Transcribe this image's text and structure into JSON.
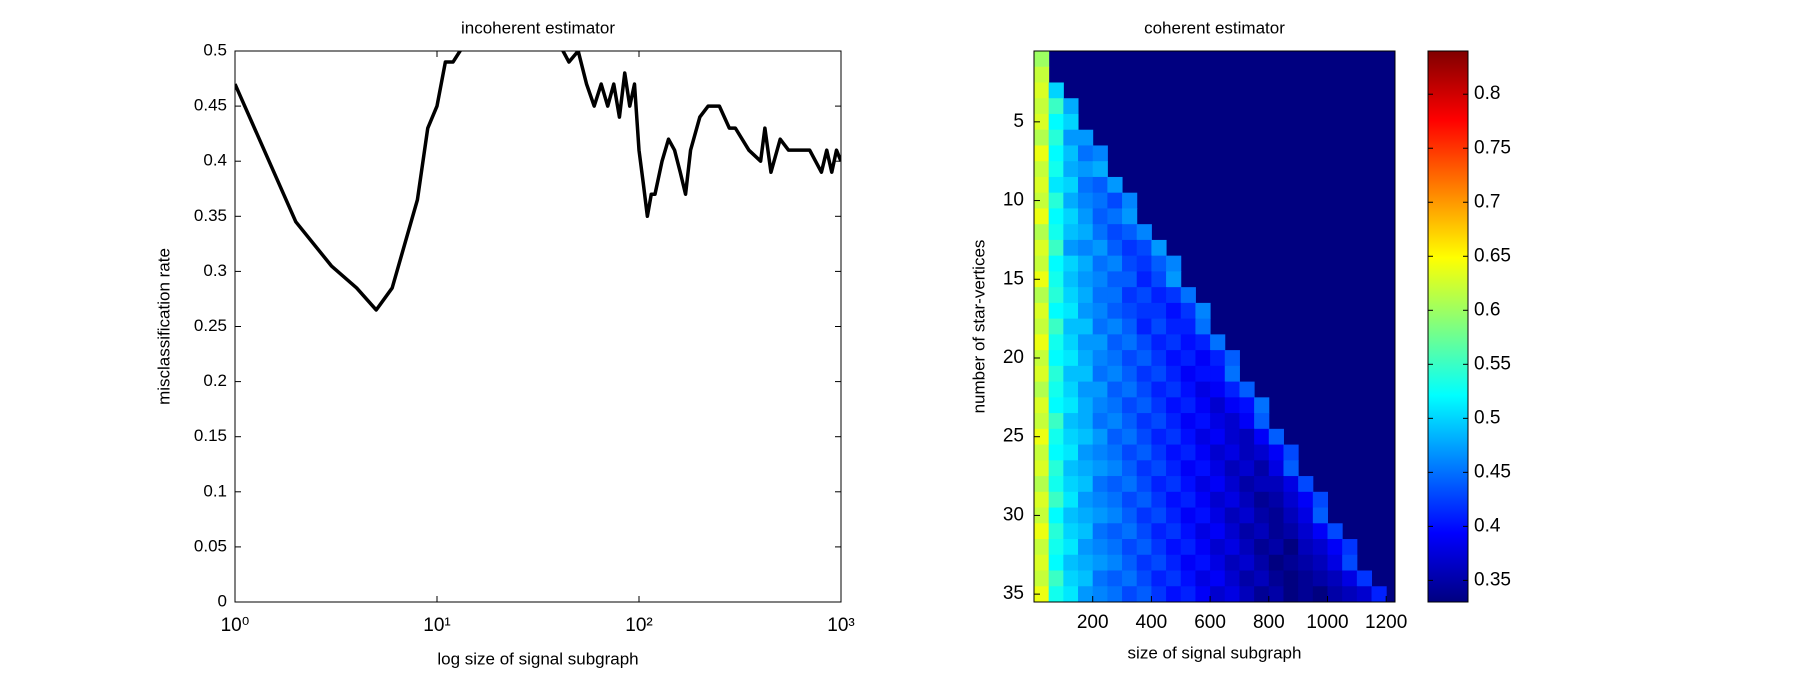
{
  "chart_data": [
    {
      "type": "line",
      "title": "incoherent estimator",
      "xlabel": "log size of signal subgraph",
      "ylabel": "misclassification rate",
      "xscale": "log",
      "xlim": [
        1,
        1000
      ],
      "ylim": [
        0,
        0.5
      ],
      "xticks": [
        {
          "value": 1,
          "label": "10⁰"
        },
        {
          "value": 10,
          "label": "10¹"
        },
        {
          "value": 100,
          "label": "10²"
        },
        {
          "value": 1000,
          "label": "10³"
        }
      ],
      "yticks": [
        0,
        0.05,
        0.1,
        0.15,
        0.2,
        0.25,
        0.3,
        0.35,
        0.4,
        0.45,
        0.5
      ],
      "series": [
        {
          "color": "#000000",
          "x": [
            1,
            2,
            3,
            4,
            5,
            6,
            8,
            9,
            10,
            11,
            12,
            13,
            20,
            30,
            45,
            50,
            55,
            60,
            65,
            70,
            75,
            80,
            85,
            90,
            95,
            100,
            105,
            110,
            115,
            120,
            130,
            140,
            150,
            160,
            170,
            180,
            200,
            220,
            250,
            280,
            300,
            350,
            400,
            420,
            450,
            500,
            550,
            600,
            700,
            800,
            850,
            900,
            950,
            1000
          ],
          "values": [
            0.47,
            0.345,
            0.305,
            0.285,
            0.265,
            0.285,
            0.365,
            0.43,
            0.45,
            0.49,
            0.49,
            0.5,
            0.55,
            0.55,
            0.49,
            0.5,
            0.47,
            0.45,
            0.47,
            0.45,
            0.47,
            0.44,
            0.48,
            0.45,
            0.47,
            0.41,
            0.38,
            0.35,
            0.37,
            0.37,
            0.4,
            0.42,
            0.41,
            0.39,
            0.37,
            0.41,
            0.44,
            0.45,
            0.45,
            0.43,
            0.43,
            0.41,
            0.4,
            0.43,
            0.39,
            0.42,
            0.41,
            0.41,
            0.41,
            0.39,
            0.41,
            0.39,
            0.41,
            0.4
          ]
        }
      ]
    },
    {
      "type": "heatmap",
      "title": "coherent estimator",
      "xlabel": "size of signal subgraph",
      "ylabel": "number of star-vertices",
      "colormap": "jet",
      "ydir": "reverse",
      "xlim": [
        0,
        1230
      ],
      "ylim": [
        0.5,
        35.5
      ],
      "clim": [
        0.33,
        0.84
      ],
      "xticks": [
        200,
        400,
        600,
        800,
        1000,
        1200
      ],
      "yticks": [
        5,
        10,
        15,
        20,
        25,
        30,
        35
      ],
      "cticks": [
        0.35,
        0.4,
        0.45,
        0.5,
        0.55,
        0.6,
        0.65,
        0.7,
        0.75,
        0.8
      ],
      "x": [
        25,
        75,
        125,
        175,
        225,
        275,
        325,
        375,
        425,
        475,
        525,
        575,
        625,
        675,
        725,
        775,
        825,
        875,
        925,
        975,
        1025,
        1075,
        1125,
        1175
      ],
      "y": [
        1,
        2,
        3,
        4,
        5,
        6,
        7,
        8,
        9,
        10,
        11,
        12,
        13,
        14,
        15,
        16,
        17,
        18,
        19,
        20,
        21,
        22,
        23,
        24,
        25,
        26,
        27,
        28,
        29,
        30,
        31,
        32,
        33,
        34,
        35
      ],
      "z": [
        [
          0.6,
          null,
          null,
          null,
          null,
          null,
          null,
          null,
          null,
          null,
          null,
          null,
          null,
          null,
          null,
          null,
          null,
          null,
          null,
          null,
          null,
          null,
          null,
          null
        ],
        [
          0.62,
          null,
          null,
          null,
          null,
          null,
          null,
          null,
          null,
          null,
          null,
          null,
          null,
          null,
          null,
          null,
          null,
          null,
          null,
          null,
          null,
          null,
          null,
          null
        ],
        [
          0.63,
          0.5,
          null,
          null,
          null,
          null,
          null,
          null,
          null,
          null,
          null,
          null,
          null,
          null,
          null,
          null,
          null,
          null,
          null,
          null,
          null,
          null,
          null,
          null
        ],
        [
          0.62,
          0.55,
          0.48,
          null,
          null,
          null,
          null,
          null,
          null,
          null,
          null,
          null,
          null,
          null,
          null,
          null,
          null,
          null,
          null,
          null,
          null,
          null,
          null,
          null
        ],
        [
          0.63,
          0.52,
          0.5,
          null,
          null,
          null,
          null,
          null,
          null,
          null,
          null,
          null,
          null,
          null,
          null,
          null,
          null,
          null,
          null,
          null,
          null,
          null,
          null,
          null
        ],
        [
          0.61,
          0.54,
          0.47,
          0.47,
          null,
          null,
          null,
          null,
          null,
          null,
          null,
          null,
          null,
          null,
          null,
          null,
          null,
          null,
          null,
          null,
          null,
          null,
          null,
          null
        ],
        [
          0.64,
          0.52,
          0.49,
          0.45,
          0.46,
          null,
          null,
          null,
          null,
          null,
          null,
          null,
          null,
          null,
          null,
          null,
          null,
          null,
          null,
          null,
          null,
          null,
          null,
          null
        ],
        [
          0.62,
          0.53,
          0.48,
          0.47,
          0.48,
          null,
          null,
          null,
          null,
          null,
          null,
          null,
          null,
          null,
          null,
          null,
          null,
          null,
          null,
          null,
          null,
          null,
          null,
          null
        ],
        [
          0.63,
          0.51,
          0.5,
          0.45,
          0.44,
          0.47,
          null,
          null,
          null,
          null,
          null,
          null,
          null,
          null,
          null,
          null,
          null,
          null,
          null,
          null,
          null,
          null,
          null,
          null
        ],
        [
          0.62,
          0.54,
          0.48,
          0.46,
          0.45,
          0.43,
          0.46,
          null,
          null,
          null,
          null,
          null,
          null,
          null,
          null,
          null,
          null,
          null,
          null,
          null,
          null,
          null,
          null,
          null
        ],
        [
          0.64,
          0.52,
          0.5,
          0.47,
          0.44,
          0.45,
          0.47,
          null,
          null,
          null,
          null,
          null,
          null,
          null,
          null,
          null,
          null,
          null,
          null,
          null,
          null,
          null,
          null,
          null
        ],
        [
          0.61,
          0.53,
          0.49,
          0.48,
          0.45,
          0.43,
          0.44,
          0.46,
          null,
          null,
          null,
          null,
          null,
          null,
          null,
          null,
          null,
          null,
          null,
          null,
          null,
          null,
          null,
          null
        ],
        [
          0.63,
          0.55,
          0.47,
          0.46,
          0.47,
          0.44,
          0.42,
          0.43,
          0.47,
          null,
          null,
          null,
          null,
          null,
          null,
          null,
          null,
          null,
          null,
          null,
          null,
          null,
          null,
          null
        ],
        [
          0.62,
          0.52,
          0.5,
          0.48,
          0.45,
          0.46,
          0.43,
          0.42,
          0.44,
          0.46,
          null,
          null,
          null,
          null,
          null,
          null,
          null,
          null,
          null,
          null,
          null,
          null,
          null,
          null
        ],
        [
          0.64,
          0.53,
          0.49,
          0.47,
          0.46,
          0.44,
          0.44,
          0.41,
          0.43,
          0.47,
          null,
          null,
          null,
          null,
          null,
          null,
          null,
          null,
          null,
          null,
          null,
          null,
          null,
          null
        ],
        [
          0.61,
          0.54,
          0.5,
          0.48,
          0.45,
          0.45,
          0.42,
          0.43,
          0.41,
          0.42,
          0.45,
          null,
          null,
          null,
          null,
          null,
          null,
          null,
          null,
          null,
          null,
          null,
          null,
          null
        ],
        [
          0.63,
          0.52,
          0.51,
          0.47,
          0.46,
          0.44,
          0.43,
          0.42,
          0.42,
          0.4,
          0.42,
          0.46,
          null,
          null,
          null,
          null,
          null,
          null,
          null,
          null,
          null,
          null,
          null,
          null
        ],
        [
          0.62,
          0.55,
          0.49,
          0.49,
          0.45,
          0.46,
          0.44,
          0.41,
          0.43,
          0.41,
          0.41,
          0.45,
          null,
          null,
          null,
          null,
          null,
          null,
          null,
          null,
          null,
          null,
          null,
          null
        ],
        [
          0.64,
          0.53,
          0.5,
          0.47,
          0.47,
          0.44,
          0.45,
          0.43,
          0.41,
          0.42,
          0.4,
          0.41,
          0.45,
          null,
          null,
          null,
          null,
          null,
          null,
          null,
          null,
          null,
          null,
          null
        ],
        [
          0.62,
          0.52,
          0.51,
          0.48,
          0.46,
          0.45,
          0.43,
          0.44,
          0.42,
          0.4,
          0.41,
          0.39,
          0.41,
          0.44,
          null,
          null,
          null,
          null,
          null,
          null,
          null,
          null,
          null,
          null
        ],
        [
          0.63,
          0.54,
          0.49,
          0.49,
          0.45,
          0.46,
          0.44,
          0.42,
          0.43,
          0.41,
          0.39,
          0.4,
          0.4,
          0.45,
          null,
          null,
          null,
          null,
          null,
          null,
          null,
          null,
          null,
          null
        ],
        [
          0.61,
          0.53,
          0.5,
          0.47,
          0.47,
          0.44,
          0.45,
          0.43,
          0.41,
          0.42,
          0.4,
          0.38,
          0.39,
          0.41,
          0.44,
          null,
          null,
          null,
          null,
          null,
          null,
          null,
          null,
          null
        ],
        [
          0.63,
          0.52,
          0.51,
          0.48,
          0.46,
          0.45,
          0.43,
          0.44,
          0.42,
          0.4,
          0.41,
          0.39,
          0.37,
          0.39,
          0.4,
          0.45,
          null,
          null,
          null,
          null,
          null,
          null,
          null,
          null
        ],
        [
          0.62,
          0.55,
          0.49,
          0.48,
          0.45,
          0.46,
          0.44,
          0.42,
          0.43,
          0.41,
          0.39,
          0.4,
          0.38,
          0.37,
          0.39,
          0.44,
          null,
          null,
          null,
          null,
          null,
          null,
          null,
          null
        ],
        [
          0.64,
          0.53,
          0.5,
          0.49,
          0.47,
          0.44,
          0.45,
          0.43,
          0.41,
          0.42,
          0.4,
          0.38,
          0.39,
          0.37,
          0.36,
          0.39,
          0.44,
          null,
          null,
          null,
          null,
          null,
          null,
          null
        ],
        [
          0.62,
          0.52,
          0.51,
          0.47,
          0.46,
          0.45,
          0.43,
          0.44,
          0.42,
          0.4,
          0.41,
          0.39,
          0.37,
          0.38,
          0.36,
          0.37,
          0.39,
          0.43,
          null,
          null,
          null,
          null,
          null,
          null
        ],
        [
          0.63,
          0.54,
          0.49,
          0.48,
          0.47,
          0.46,
          0.44,
          0.42,
          0.43,
          0.41,
          0.39,
          0.4,
          0.38,
          0.36,
          0.37,
          0.35,
          0.38,
          0.44,
          null,
          null,
          null,
          null,
          null,
          null
        ],
        [
          0.61,
          0.53,
          0.5,
          0.49,
          0.45,
          0.44,
          0.45,
          0.43,
          0.41,
          0.42,
          0.4,
          0.38,
          0.39,
          0.37,
          0.35,
          0.36,
          0.36,
          0.38,
          0.43,
          null,
          null,
          null,
          null,
          null
        ],
        [
          0.63,
          0.55,
          0.51,
          0.47,
          0.46,
          0.45,
          0.43,
          0.44,
          0.42,
          0.4,
          0.41,
          0.39,
          0.37,
          0.38,
          0.36,
          0.34,
          0.35,
          0.37,
          0.39,
          0.43,
          null,
          null,
          null,
          null
        ],
        [
          0.62,
          0.52,
          0.49,
          0.48,
          0.47,
          0.46,
          0.44,
          0.42,
          0.43,
          0.41,
          0.39,
          0.4,
          0.38,
          0.36,
          0.37,
          0.35,
          0.34,
          0.36,
          0.38,
          0.44,
          null,
          null,
          null,
          null
        ],
        [
          0.64,
          0.54,
          0.5,
          0.49,
          0.45,
          0.44,
          0.45,
          0.43,
          0.41,
          0.42,
          0.4,
          0.38,
          0.39,
          0.37,
          0.35,
          0.36,
          0.34,
          0.35,
          0.37,
          0.39,
          0.43,
          null,
          null,
          null
        ],
        [
          0.62,
          0.53,
          0.51,
          0.47,
          0.46,
          0.45,
          0.43,
          0.44,
          0.42,
          0.4,
          0.41,
          0.39,
          0.37,
          0.38,
          0.36,
          0.34,
          0.35,
          0.33,
          0.36,
          0.37,
          0.39,
          0.42,
          null,
          null
        ],
        [
          0.63,
          0.52,
          0.49,
          0.48,
          0.47,
          0.46,
          0.44,
          0.42,
          0.43,
          0.41,
          0.39,
          0.4,
          0.38,
          0.36,
          0.37,
          0.35,
          0.33,
          0.34,
          0.35,
          0.36,
          0.38,
          0.43,
          null,
          null
        ],
        [
          0.62,
          0.55,
          0.5,
          0.49,
          0.45,
          0.44,
          0.45,
          0.43,
          0.41,
          0.42,
          0.4,
          0.38,
          0.39,
          0.37,
          0.35,
          0.36,
          0.34,
          0.33,
          0.34,
          0.35,
          0.36,
          0.38,
          0.42,
          null
        ],
        [
          0.64,
          0.53,
          0.51,
          0.47,
          0.46,
          0.45,
          0.43,
          0.44,
          0.42,
          0.4,
          0.41,
          0.39,
          0.37,
          0.38,
          0.36,
          0.34,
          0.35,
          0.33,
          0.34,
          0.33,
          0.35,
          0.36,
          0.37,
          0.41
        ]
      ]
    }
  ]
}
